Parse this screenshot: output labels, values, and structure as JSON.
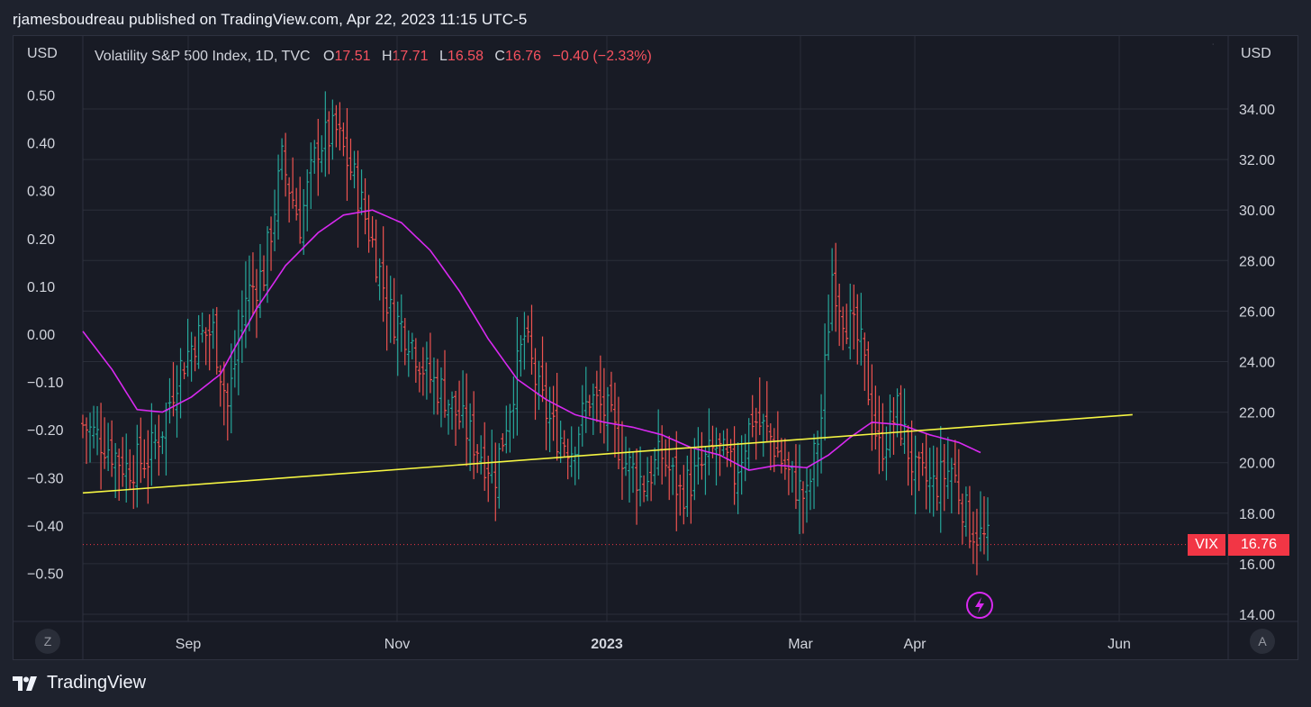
{
  "header": {
    "publisher": "rjamesboudreau published on TradingView.com, Apr 22, 2023 11:15 UTC-5"
  },
  "chart": {
    "left_currency": "USD",
    "right_currency": "USD",
    "legend": {
      "name": "Volatility S&P 500 Index, 1D, TVC",
      "o_key": "O",
      "o_val": "17.51",
      "h_key": "H",
      "h_val": "17.71",
      "l_key": "L",
      "l_val": "16.58",
      "c_key": "C",
      "c_val": "16.76",
      "change": "−0.40 (−2.33%)"
    },
    "price_tag_symbol": "VIX",
    "price_tag_value": "16.76",
    "zone_button": "Z",
    "auto_button": "A",
    "dots": "˙"
  },
  "footer": {
    "brand": "TradingView"
  },
  "chart_data": {
    "type": "ohlc-bar",
    "title": "Volatility S&P 500 Index, 1D, TVC",
    "symbol": "VIX",
    "last_price": 16.76,
    "x_ticks": [
      "Sep",
      "Nov",
      "2023",
      "Mar",
      "Apr",
      "Jun"
    ],
    "y_ticks_right": [
      "34.00",
      "32.00",
      "30.00",
      "28.00",
      "26.00",
      "24.00",
      "22.00",
      "20.00",
      "18.00",
      "16.00",
      "14.00"
    ],
    "y_ticks_left": [
      "0.50",
      "0.40",
      "0.30",
      "0.20",
      "0.10",
      "0.00",
      "−0.10",
      "−0.20",
      "−0.30",
      "−0.40",
      "−0.50"
    ],
    "ylim_right": [
      13.8,
      35.8
    ],
    "ylim_left": [
      -0.63,
      0.62
    ],
    "colors": {
      "up": "#26a69a",
      "down": "#ef5350",
      "ma": "#d829f0",
      "trend": "#f5f542",
      "grid": "#2a2e39",
      "axis_text": "#d1d4dc"
    },
    "close_anchors": [
      [
        0,
        21.5
      ],
      [
        6,
        20.8
      ],
      [
        12,
        19.8
      ],
      [
        18,
        20.2
      ],
      [
        22,
        21.4
      ],
      [
        26,
        23.5
      ],
      [
        31,
        24.9
      ],
      [
        36,
        25.2
      ],
      [
        40,
        22.2
      ],
      [
        45,
        26.6
      ],
      [
        50,
        27.5
      ],
      [
        55,
        31.9
      ],
      [
        60,
        29.5
      ],
      [
        65,
        32.6
      ],
      [
        70,
        33.1
      ],
      [
        75,
        31.2
      ],
      [
        80,
        28.7
      ],
      [
        85,
        25.9
      ],
      [
        90,
        25.1
      ],
      [
        95,
        23.5
      ],
      [
        100,
        22.7
      ],
      [
        105,
        21.5
      ],
      [
        110,
        20.4
      ],
      [
        114,
        19.6
      ],
      [
        118,
        22.4
      ],
      [
        122,
        25.0
      ],
      [
        126,
        22.7
      ],
      [
        130,
        21.3
      ],
      [
        135,
        20.6
      ],
      [
        140,
        22.6
      ],
      [
        145,
        21.9
      ],
      [
        150,
        20.0
      ],
      [
        155,
        19.2
      ],
      [
        160,
        20.3
      ],
      [
        165,
        18.8
      ],
      [
        170,
        19.6
      ],
      [
        175,
        20.6
      ],
      [
        180,
        19.5
      ],
      [
        185,
        21.8
      ],
      [
        190,
        21.0
      ],
      [
        195,
        19.5
      ],
      [
        200,
        18.5
      ],
      [
        204,
        21.8
      ],
      [
        207,
        27.5
      ],
      [
        210,
        26.0
      ],
      [
        215,
        24.5
      ],
      [
        220,
        20.5
      ],
      [
        225,
        22.0
      ],
      [
        230,
        19.5
      ],
      [
        235,
        19.1
      ],
      [
        240,
        19.8
      ],
      [
        245,
        17.5
      ],
      [
        250,
        16.8
      ]
    ],
    "ma_anchors": [
      [
        0,
        25.2
      ],
      [
        8,
        23.7
      ],
      [
        15,
        22.1
      ],
      [
        22,
        22.0
      ],
      [
        30,
        22.6
      ],
      [
        38,
        23.5
      ],
      [
        48,
        26.1
      ],
      [
        56,
        27.8
      ],
      [
        65,
        29.1
      ],
      [
        72,
        29.8
      ],
      [
        80,
        30.0
      ],
      [
        88,
        29.5
      ],
      [
        96,
        28.4
      ],
      [
        104,
        26.8
      ],
      [
        112,
        24.9
      ],
      [
        120,
        23.3
      ],
      [
        128,
        22.5
      ],
      [
        136,
        21.9
      ],
      [
        144,
        21.6
      ],
      [
        152,
        21.4
      ],
      [
        160,
        21.1
      ],
      [
        168,
        20.6
      ],
      [
        176,
        20.3
      ],
      [
        184,
        19.7
      ],
      [
        192,
        19.9
      ],
      [
        200,
        19.8
      ],
      [
        206,
        20.3
      ],
      [
        212,
        21.0
      ],
      [
        218,
        21.6
      ],
      [
        226,
        21.5
      ],
      [
        234,
        21.1
      ],
      [
        242,
        20.8
      ],
      [
        248,
        20.4
      ]
    ],
    "trendline": {
      "start": [
        0,
        18.8
      ],
      "end": [
        290,
        21.9
      ]
    }
  }
}
